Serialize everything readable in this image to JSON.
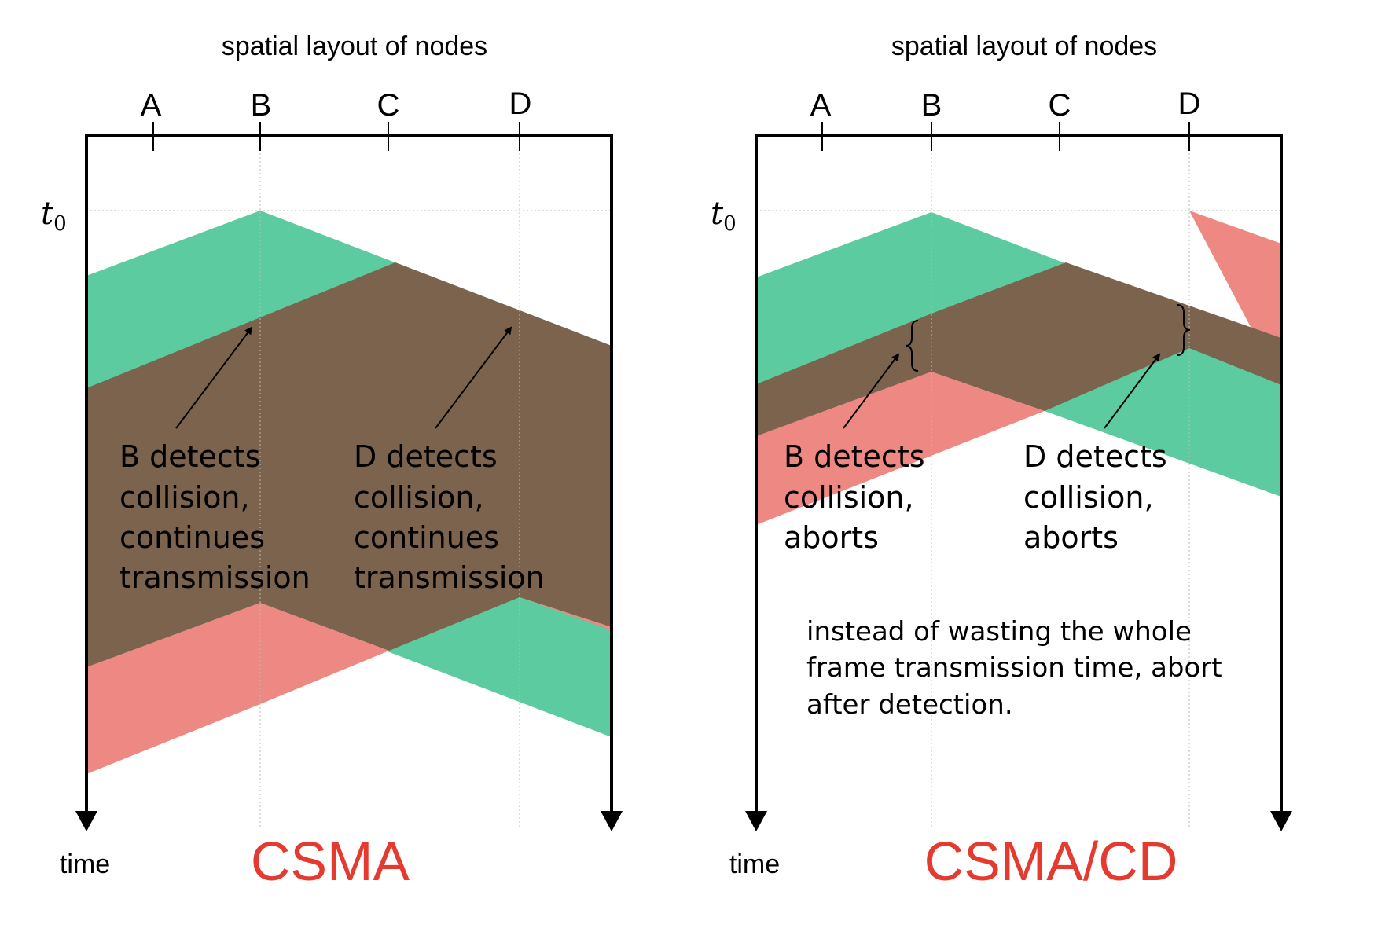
{
  "colors": {
    "green": "#5ccb9f",
    "red": "#ee8882",
    "overlap": "#7b634e",
    "title_red": "#e43a2f",
    "axis": "#000000"
  },
  "panels": [
    {
      "id": "csma",
      "heading": "spatial layout of nodes",
      "nodes": [
        "A",
        "B",
        "C",
        "D"
      ],
      "t0_label": "t",
      "t0_sub": "0",
      "time_label": "time",
      "title": "CSMA",
      "annotations": [
        {
          "lines": [
            "B detects",
            "collision,",
            "continues",
            "transmission"
          ]
        },
        {
          "lines": [
            "D detects",
            "collision,",
            "continues",
            "transmission"
          ]
        }
      ]
    },
    {
      "id": "csmacd",
      "heading": "spatial layout of nodes",
      "nodes": [
        "A",
        "B",
        "C",
        "D"
      ],
      "t0_label": "t",
      "t0_sub": "0",
      "time_label": "time",
      "title": "CSMA/CD",
      "annotations": [
        {
          "lines": [
            "B detects",
            "collision,",
            "aborts"
          ]
        },
        {
          "lines": [
            "D detects",
            "collision,",
            "aborts"
          ]
        }
      ],
      "note": [
        "instead of wasting the whole",
        "frame transmission time, abort",
        "after detection."
      ]
    }
  ]
}
